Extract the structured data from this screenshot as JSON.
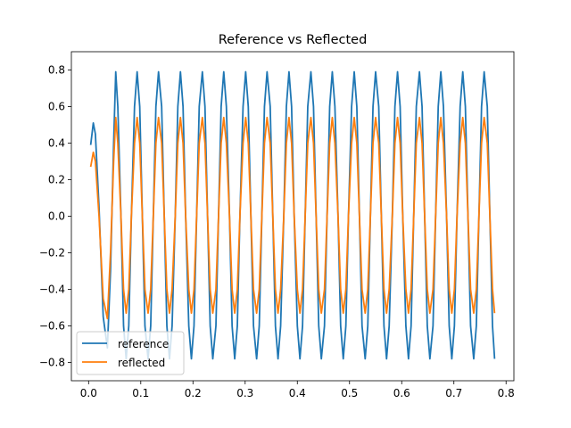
{
  "chart_data": {
    "type": "line",
    "title": "Reference vs Reflected",
    "xlabel": "",
    "ylabel": "",
    "xlim": [
      -0.033,
      0.815
    ],
    "ylim": [
      -0.9,
      0.9
    ],
    "xticks": [
      0.0,
      0.1,
      0.2,
      0.3,
      0.4,
      0.5,
      0.6,
      0.7,
      0.8
    ],
    "xtick_labels": [
      "0.0",
      "0.1",
      "0.2",
      "0.3",
      "0.4",
      "0.5",
      "0.6",
      "0.7",
      "0.8"
    ],
    "yticks": [
      0.8,
      0.6,
      0.4,
      0.2,
      0.0,
      -0.2,
      -0.4,
      -0.6,
      -0.8
    ],
    "ytick_labels": [
      "0.8",
      "0.6",
      "0.4",
      "0.2",
      "0.0",
      "−0.2",
      "−0.4",
      "−0.6",
      "−0.8"
    ],
    "grid": false,
    "legend_position": "lower-left",
    "series": [
      {
        "name": "reference",
        "color": "#1f77b4",
        "x": [
          0.004,
          0.009,
          0.013,
          0.02,
          0.028,
          0.036,
          0.042,
          0.048,
          0.052,
          0.056,
          0.062,
          0.067,
          0.072,
          0.077,
          0.082,
          0.088,
          0.093,
          0.098,
          0.103,
          0.108,
          0.114,
          0.119,
          0.124,
          0.129,
          0.134,
          0.14,
          0.145,
          0.15,
          0.155,
          0.16,
          0.166,
          0.171,
          0.176,
          0.181,
          0.186,
          0.192,
          0.197,
          0.202,
          0.207,
          0.212,
          0.218,
          0.223,
          0.228,
          0.233,
          0.238,
          0.244,
          0.249,
          0.254,
          0.259,
          0.264,
          0.27,
          0.275,
          0.28,
          0.285,
          0.29,
          0.296,
          0.301,
          0.306,
          0.311,
          0.316,
          0.322,
          0.327,
          0.332,
          0.337,
          0.342,
          0.348,
          0.353,
          0.358,
          0.363,
          0.368,
          0.374,
          0.379,
          0.384,
          0.389,
          0.394,
          0.4,
          0.405,
          0.41,
          0.415,
          0.42,
          0.426,
          0.431,
          0.436,
          0.441,
          0.446,
          0.452,
          0.457,
          0.462,
          0.467,
          0.472,
          0.478,
          0.483,
          0.488,
          0.493,
          0.498,
          0.504,
          0.509,
          0.514,
          0.519,
          0.524,
          0.53,
          0.535,
          0.54,
          0.545,
          0.55,
          0.556,
          0.561,
          0.566,
          0.571,
          0.576,
          0.582,
          0.587,
          0.592,
          0.597,
          0.602,
          0.608,
          0.613,
          0.618,
          0.623,
          0.628,
          0.634,
          0.639,
          0.644,
          0.649,
          0.654,
          0.66,
          0.665,
          0.67,
          0.675,
          0.68,
          0.686,
          0.691,
          0.696,
          0.701,
          0.706,
          0.712,
          0.717,
          0.722,
          0.727,
          0.732,
          0.738,
          0.743,
          0.748,
          0.753,
          0.758,
          0.764,
          0.769,
          0.774,
          0.778
        ],
        "y": [
          0.39,
          0.51,
          0.45,
          0.05,
          -0.55,
          -0.72,
          -0.3,
          0.4,
          0.79,
          0.6,
          0.0,
          -0.6,
          -0.78,
          -0.6,
          0.0,
          0.6,
          0.79,
          0.6,
          0.0,
          -0.6,
          -0.78,
          -0.6,
          0.0,
          0.6,
          0.79,
          0.6,
          0.0,
          -0.6,
          -0.78,
          -0.6,
          0.0,
          0.6,
          0.79,
          0.6,
          0.0,
          -0.6,
          -0.78,
          -0.6,
          0.0,
          0.6,
          0.79,
          0.6,
          0.0,
          -0.6,
          -0.78,
          -0.6,
          0.0,
          0.6,
          0.79,
          0.6,
          0.0,
          -0.6,
          -0.78,
          -0.6,
          0.0,
          0.6,
          0.79,
          0.6,
          0.0,
          -0.6,
          -0.78,
          -0.6,
          0.0,
          0.6,
          0.79,
          0.6,
          0.0,
          -0.6,
          -0.78,
          -0.6,
          0.0,
          0.6,
          0.79,
          0.6,
          0.0,
          -0.6,
          -0.78,
          -0.6,
          0.0,
          0.6,
          0.79,
          0.6,
          0.0,
          -0.6,
          -0.78,
          -0.6,
          0.0,
          0.6,
          0.79,
          0.6,
          0.0,
          -0.6,
          -0.78,
          -0.6,
          0.0,
          0.6,
          0.79,
          0.6,
          0.0,
          -0.6,
          -0.78,
          -0.6,
          0.0,
          0.6,
          0.79,
          0.6,
          0.0,
          -0.6,
          -0.78,
          -0.6,
          0.0,
          0.6,
          0.79,
          0.6,
          0.0,
          -0.6,
          -0.78,
          -0.6,
          0.0,
          0.6,
          0.79,
          0.6,
          0.0,
          -0.6,
          -0.78,
          -0.6,
          0.0,
          0.6,
          0.79,
          0.6,
          0.0,
          -0.6,
          -0.78,
          -0.6,
          0.0,
          0.6,
          0.79,
          0.6,
          0.0,
          -0.6,
          -0.78,
          -0.6,
          0.0,
          0.6,
          0.79,
          0.6,
          0.0,
          -0.6,
          -0.78
        ]
      },
      {
        "name": "reflected",
        "color": "#ff7f0e",
        "x": [
          0.004,
          0.009,
          0.013,
          0.02,
          0.028,
          0.036,
          0.042,
          0.048,
          0.052,
          0.056,
          0.062,
          0.067,
          0.072,
          0.077,
          0.082,
          0.088,
          0.093,
          0.098,
          0.103,
          0.108,
          0.114,
          0.119,
          0.124,
          0.129,
          0.134,
          0.14,
          0.145,
          0.15,
          0.155,
          0.16,
          0.166,
          0.171,
          0.176,
          0.181,
          0.186,
          0.192,
          0.197,
          0.202,
          0.207,
          0.212,
          0.218,
          0.223,
          0.228,
          0.233,
          0.238,
          0.244,
          0.249,
          0.254,
          0.259,
          0.264,
          0.27,
          0.275,
          0.28,
          0.285,
          0.29,
          0.296,
          0.301,
          0.306,
          0.311,
          0.316,
          0.322,
          0.327,
          0.332,
          0.337,
          0.342,
          0.348,
          0.353,
          0.358,
          0.363,
          0.368,
          0.374,
          0.379,
          0.384,
          0.389,
          0.394,
          0.4,
          0.405,
          0.41,
          0.415,
          0.42,
          0.426,
          0.431,
          0.436,
          0.441,
          0.446,
          0.452,
          0.457,
          0.462,
          0.467,
          0.472,
          0.478,
          0.483,
          0.488,
          0.493,
          0.498,
          0.504,
          0.509,
          0.514,
          0.519,
          0.524,
          0.53,
          0.535,
          0.54,
          0.545,
          0.55,
          0.556,
          0.561,
          0.566,
          0.571,
          0.576,
          0.582,
          0.587,
          0.592,
          0.597,
          0.602,
          0.608,
          0.613,
          0.618,
          0.623,
          0.628,
          0.634,
          0.639,
          0.644,
          0.649,
          0.654,
          0.66,
          0.665,
          0.67,
          0.675,
          0.68,
          0.686,
          0.691,
          0.696,
          0.701,
          0.706,
          0.712,
          0.717,
          0.722,
          0.727,
          0.732,
          0.738,
          0.743,
          0.748,
          0.753,
          0.758,
          0.764,
          0.769,
          0.774,
          0.778
        ],
        "y": [
          0.27,
          0.35,
          0.3,
          0.0,
          -0.45,
          -0.56,
          -0.2,
          0.3,
          0.54,
          0.4,
          0.0,
          -0.4,
          -0.53,
          -0.4,
          0.0,
          0.4,
          0.54,
          0.4,
          0.0,
          -0.4,
          -0.53,
          -0.4,
          0.0,
          0.4,
          0.54,
          0.4,
          0.0,
          -0.4,
          -0.53,
          -0.4,
          0.0,
          0.4,
          0.54,
          0.4,
          0.0,
          -0.4,
          -0.53,
          -0.4,
          0.0,
          0.4,
          0.54,
          0.4,
          0.0,
          -0.4,
          -0.53,
          -0.4,
          0.0,
          0.4,
          0.54,
          0.4,
          0.0,
          -0.4,
          -0.53,
          -0.4,
          0.0,
          0.4,
          0.54,
          0.4,
          0.0,
          -0.4,
          -0.53,
          -0.4,
          0.0,
          0.4,
          0.54,
          0.4,
          0.0,
          -0.4,
          -0.53,
          -0.4,
          0.0,
          0.4,
          0.54,
          0.4,
          0.0,
          -0.4,
          -0.53,
          -0.4,
          0.0,
          0.4,
          0.54,
          0.4,
          0.0,
          -0.4,
          -0.53,
          -0.4,
          0.0,
          0.4,
          0.54,
          0.4,
          0.0,
          -0.4,
          -0.53,
          -0.4,
          0.0,
          0.4,
          0.54,
          0.4,
          0.0,
          -0.4,
          -0.53,
          -0.4,
          0.0,
          0.4,
          0.54,
          0.4,
          0.0,
          -0.4,
          -0.53,
          -0.4,
          0.0,
          0.4,
          0.54,
          0.4,
          0.0,
          -0.4,
          -0.53,
          -0.4,
          0.0,
          0.4,
          0.54,
          0.4,
          0.0,
          -0.4,
          -0.53,
          -0.4,
          0.0,
          0.4,
          0.54,
          0.4,
          0.0,
          -0.4,
          -0.53,
          -0.4,
          0.0,
          0.4,
          0.54,
          0.4,
          0.0,
          -0.4,
          -0.53,
          -0.4,
          0.0,
          0.4,
          0.54,
          0.4,
          0.0,
          -0.4,
          -0.53
        ]
      }
    ]
  }
}
